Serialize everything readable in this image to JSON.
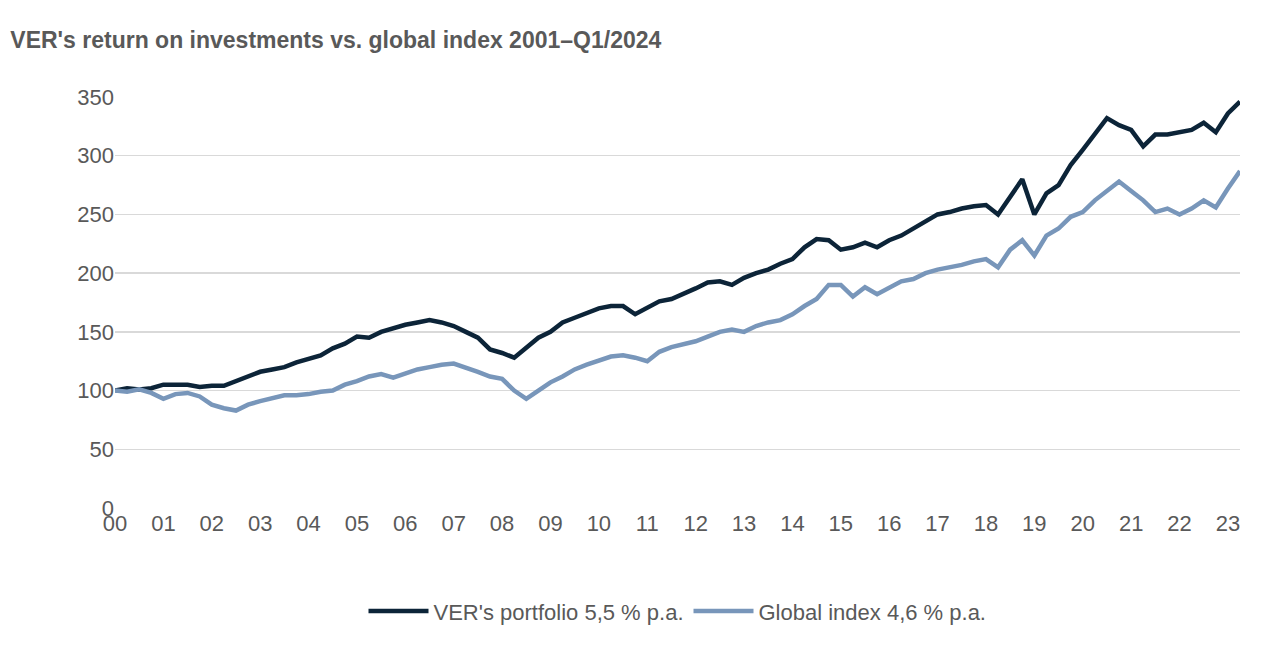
{
  "chart_data": {
    "type": "line",
    "title": "VER's return on investments vs. global index 2001–Q1/2024",
    "categories": [
      "00",
      null,
      null,
      null,
      "01",
      null,
      null,
      null,
      "02",
      null,
      null,
      null,
      "03",
      null,
      null,
      null,
      "04",
      null,
      null,
      null,
      "05",
      null,
      null,
      null,
      "06",
      null,
      null,
      null,
      "07",
      null,
      null,
      null,
      "08",
      null,
      null,
      null,
      "09",
      null,
      null,
      null,
      "10",
      null,
      null,
      null,
      "11",
      null,
      null,
      null,
      "12",
      null,
      null,
      null,
      "13",
      null,
      null,
      null,
      "14",
      null,
      null,
      null,
      "15",
      null,
      null,
      null,
      "16",
      null,
      null,
      null,
      "17",
      null,
      null,
      null,
      "18",
      null,
      null,
      null,
      "19",
      null,
      null,
      null,
      "20",
      null,
      null,
      null,
      "21",
      null,
      null,
      null,
      "22",
      null,
      null,
      null,
      "23",
      null
    ],
    "series": [
      {
        "name": "VER's portfolio 5,5 % p.a.",
        "color": "#0c2438",
        "values": [
          100,
          102,
          101,
          102,
          105,
          105,
          105,
          103,
          104,
          104,
          108,
          112,
          116,
          118,
          120,
          124,
          127,
          130,
          136,
          140,
          146,
          145,
          150,
          153,
          156,
          158,
          160,
          158,
          155,
          150,
          145,
          135,
          132,
          128,
          137,
          145,
          150,
          158,
          162,
          166,
          170,
          172,
          172,
          165,
          170,
          176,
          178,
          182,
          187,
          192,
          193,
          190,
          196,
          200,
          203,
          208,
          212,
          222,
          229,
          228,
          220,
          222,
          226,
          222,
          228,
          232,
          238,
          245,
          250,
          252,
          255,
          257,
          258,
          250,
          265,
          280,
          250,
          268,
          275,
          292,
          305,
          318,
          332,
          326,
          322,
          308,
          318,
          318,
          320,
          322,
          328,
          320,
          336,
          346
        ]
      },
      {
        "name": "Global index 4,6 % p.a.",
        "color": "#7896ba",
        "values": [
          100,
          99,
          101,
          98,
          93,
          97,
          98,
          95,
          88,
          85,
          83,
          88,
          91,
          94,
          96,
          96,
          97,
          99,
          100,
          105,
          108,
          112,
          114,
          111,
          115,
          118,
          120,
          122,
          123,
          120,
          116,
          112,
          110,
          100,
          93,
          100,
          107,
          112,
          118,
          122,
          125,
          129,
          130,
          128,
          125,
          133,
          137,
          140,
          142,
          146,
          150,
          152,
          150,
          155,
          158,
          160,
          165,
          172,
          178,
          190,
          190,
          180,
          188,
          182,
          187,
          193,
          195,
          200,
          203,
          205,
          207,
          210,
          212,
          205,
          220,
          228,
          215,
          232,
          238,
          248,
          252,
          262,
          270,
          278,
          270,
          262,
          252,
          255,
          250,
          255,
          262,
          256,
          272,
          287
        ]
      }
    ],
    "ylim": [
      0,
      350
    ],
    "yticks": [
      0,
      50,
      100,
      150,
      200,
      250,
      300,
      350
    ],
    "grid": true,
    "legend": "bottom"
  }
}
